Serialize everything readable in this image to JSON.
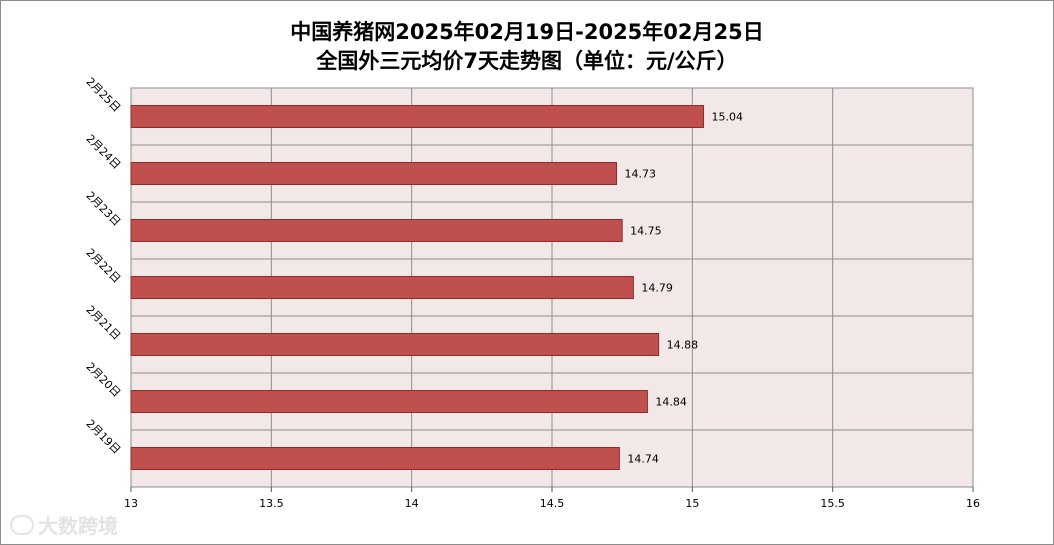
{
  "chart_data": {
    "type": "bar",
    "orientation": "horizontal",
    "title_lines": [
      "中国养猪网2025年02月19日-2025年02月25日",
      "全国外三元均价7天走势图（单位：元/公斤）"
    ],
    "categories": [
      "2月19日",
      "2月20日",
      "2月21日",
      "2月22日",
      "2月23日",
      "2月24日",
      "2月25日"
    ],
    "series": [
      {
        "values": [
          14.74,
          14.84,
          14.88,
          14.79,
          14.75,
          14.73,
          15.04
        ]
      }
    ],
    "xlim": [
      13,
      16
    ],
    "x_ticks": [
      "13",
      "13.5",
      "14",
      "14.5",
      "15",
      "15.5",
      "16"
    ],
    "grid": true,
    "legend": "none",
    "colors": {
      "bar": "#c0504d",
      "bar_edge": "#8b2d2a",
      "plot_bg": "#f3e8e8",
      "grid": "#8c8c8c"
    }
  },
  "watermark": {
    "text": "大数跨境"
  }
}
